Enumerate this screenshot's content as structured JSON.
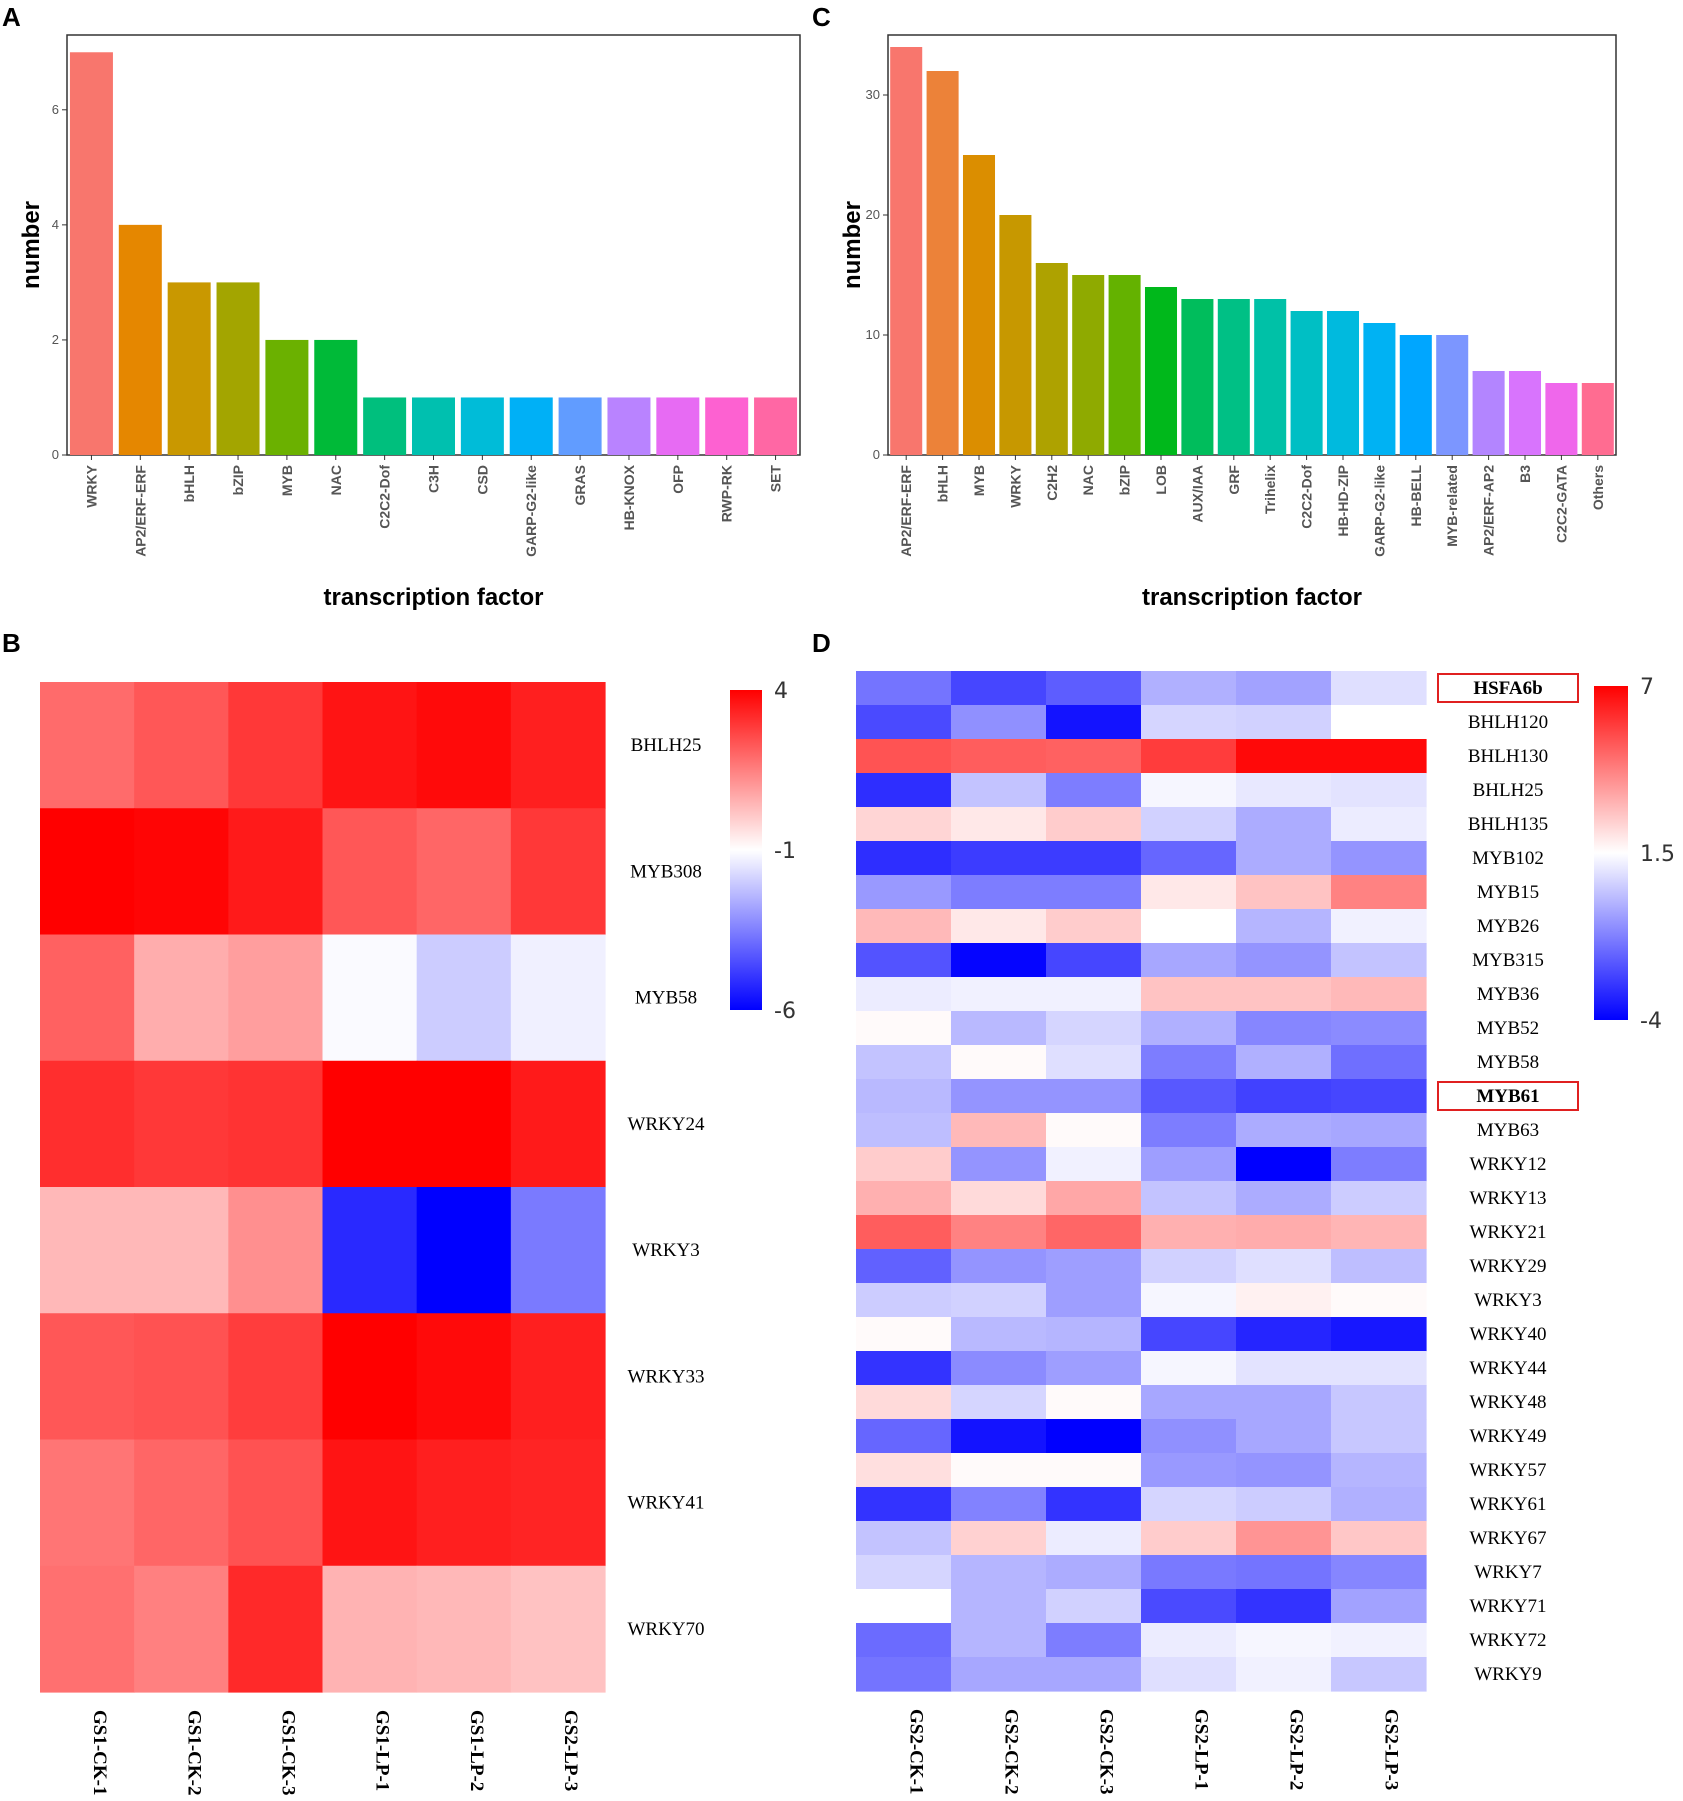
{
  "chart_data": [
    {
      "panel": "A",
      "type": "bar",
      "title": "",
      "xlabel": "transcription factor",
      "ylabel": "number",
      "ylim": [
        0,
        7.3
      ],
      "yticks": [
        0,
        2,
        4,
        6
      ],
      "categories": [
        "WRKY",
        "AP2/ERF-ERF",
        "bHLH",
        "bZIP",
        "MYB",
        "NAC",
        "C2C2-Dof",
        "C3H",
        "CSD",
        "GARP-G2-like",
        "GRAS",
        "HB-KNOX",
        "OFP",
        "RWP-RK",
        "SET"
      ],
      "values": [
        7,
        4,
        3,
        3,
        2,
        2,
        1,
        1,
        1,
        1,
        1,
        1,
        1,
        1,
        1
      ],
      "colors": [
        "#F8766D",
        "#E58700",
        "#C99800",
        "#A3A500",
        "#6BB100",
        "#00BA38",
        "#00BF7D",
        "#00C0AF",
        "#00BCD8",
        "#00B0F6",
        "#619CFF",
        "#B983FF",
        "#E76BF3",
        "#FD61D1",
        "#FF67A4"
      ],
      "grid": false
    },
    {
      "panel": "C",
      "type": "bar",
      "title": "",
      "xlabel": "transcription factor",
      "ylabel": "number",
      "ylim": [
        0,
        35
      ],
      "yticks": [
        0,
        10,
        20,
        30
      ],
      "categories": [
        "AP2/ERF-ERF",
        "bHLH",
        "MYB",
        "WRKY",
        "C2H2",
        "NAC",
        "bZIP",
        "LOB",
        "AUX/IAA",
        "GRF",
        "Trihelix",
        "C2C2-Dof",
        "HB-HD-ZIP",
        "GARP-G2-like",
        "HB-BELL",
        "MYB-related",
        "AP2/ERF-AP2",
        "B3",
        "C2C2-GATA",
        "Others"
      ],
      "values": [
        34,
        32,
        25,
        20,
        16,
        15,
        15,
        14,
        13,
        13,
        13,
        12,
        12,
        11,
        10,
        10,
        7,
        7,
        6,
        6
      ],
      "colors": [
        "#F8766D",
        "#EC8239",
        "#DB8E00",
        "#C79800",
        "#AEA200",
        "#8FAA00",
        "#64B200",
        "#00B81B",
        "#00BD5C",
        "#00C085",
        "#00C1A7",
        "#00BFC4",
        "#00BADE",
        "#00B2F3",
        "#00A6FF",
        "#7C96FF",
        "#B385FF",
        "#D874FD",
        "#EF67EB",
        "#FF6C91"
      ],
      "grid": false
    },
    {
      "panel": "B",
      "type": "heatmap",
      "title": "",
      "rows": [
        "BHLH25",
        "MYB308",
        "MYB58",
        "WRKY24",
        "WRKY3",
        "WRKY33",
        "WRKY41",
        "WRKY70"
      ],
      "columns": [
        "GS1-CK-1",
        "GS1-CK-2",
        "GS1-CK-3",
        "GS1-LP-1",
        "GS1-LP-2",
        "GS2-LP-3"
      ],
      "values": [
        [
          1.9,
          2.3,
          2.9,
          3.6,
          3.8,
          3.4
        ],
        [
          4.0,
          3.9,
          3.5,
          2.3,
          2.0,
          2.9
        ],
        [
          2.1,
          0.6,
          0.9,
          -1.1,
          -2.0,
          -1.3
        ],
        [
          3.1,
          2.9,
          3.0,
          4.6,
          4.7,
          3.5
        ],
        [
          0.4,
          0.4,
          1.2,
          -5.2,
          -6.0,
          -3.6
        ],
        [
          2.3,
          2.4,
          2.8,
          4.3,
          3.8,
          3.4
        ],
        [
          1.7,
          2.0,
          2.4,
          3.6,
          3.4,
          3.3
        ],
        [
          1.8,
          1.5,
          3.2,
          0.5,
          0.4,
          0.2
        ]
      ],
      "color_scale": {
        "min": -6,
        "mid": -1,
        "max": 4,
        "low": "#0000FF",
        "midc": "#FFFFFF",
        "high": "#FF0000"
      },
      "legend_ticks": [
        4,
        -1,
        -6
      ],
      "highlighted_rows": []
    },
    {
      "panel": "D",
      "type": "heatmap",
      "title": "",
      "rows": [
        "HSFA6b",
        "BHLH120",
        "BHLH130",
        "BHLH25",
        "BHLH135",
        "MYB102",
        "MYB15",
        "MYB26",
        "MYB315",
        "MYB36",
        "MYB52",
        "MYB58",
        "MYB61",
        "MYB63",
        "WRKY12",
        "WRKY13",
        "WRKY21",
        "WRKY29",
        "WRKY3",
        "WRKY40",
        "WRKY44",
        "WRKY48",
        "WRKY49",
        "WRKY57",
        "WRKY61",
        "WRKY67",
        "WRKY7",
        "WRKY71",
        "WRKY72",
        "WRKY9"
      ],
      "columns": [
        "GS2-CK-1",
        "GS2-CK-2",
        "GS2-CK-3",
        "GS2-LP-1",
        "GS2-LP-2",
        "GS2-LP-3"
      ],
      "values": [
        [
          -1.5,
          -2.5,
          -2.0,
          -0.2,
          -0.5,
          0.8
        ],
        [
          -2.4,
          -0.9,
          -3.6,
          0.6,
          0.5,
          1.5
        ],
        [
          5.2,
          5.0,
          4.9,
          5.7,
          6.8,
          6.8
        ],
        [
          -3.0,
          0.2,
          -1.3,
          1.3,
          1.0,
          0.9
        ],
        [
          2.4,
          2.0,
          2.6,
          0.5,
          -0.3,
          1.1
        ],
        [
          -3.0,
          -2.7,
          -2.7,
          -1.8,
          -0.3,
          -0.8
        ],
        [
          -0.7,
          -1.3,
          -1.3,
          2.0,
          2.8,
          4.2
        ],
        [
          3.0,
          2.0,
          2.6,
          1.5,
          -0.1,
          1.2
        ],
        [
          -2.2,
          -3.9,
          -2.5,
          -0.4,
          -0.8,
          0.2
        ],
        [
          1.1,
          1.2,
          1.2,
          2.8,
          2.8,
          3.0
        ],
        [
          1.6,
          0.0,
          0.6,
          -0.2,
          -1.1,
          -1.0
        ],
        [
          0.2,
          1.6,
          0.8,
          -1.3,
          -0.2,
          -1.6
        ],
        [
          0.0,
          -0.8,
          -0.8,
          -2.1,
          -2.6,
          -2.5
        ],
        [
          0.1,
          3.0,
          1.6,
          -1.3,
          -0.3,
          -0.4
        ],
        [
          2.6,
          -0.8,
          1.2,
          -0.6,
          -4.0,
          -1.3
        ],
        [
          3.2,
          2.3,
          3.4,
          0.2,
          -0.3,
          0.4
        ],
        [
          5.0,
          4.2,
          4.8,
          3.2,
          3.3,
          3.1
        ],
        [
          -1.9,
          -0.8,
          -0.6,
          0.5,
          0.8,
          0.1
        ],
        [
          0.4,
          0.5,
          -0.6,
          1.3,
          1.8,
          1.6
        ],
        [
          1.6,
          0.0,
          -0.1,
          -2.5,
          -3.2,
          -3.5
        ],
        [
          -2.9,
          -1.0,
          -0.6,
          1.3,
          0.9,
          0.9
        ],
        [
          2.3,
          0.6,
          1.6,
          -0.4,
          -0.4,
          0.3
        ],
        [
          -1.8,
          -3.6,
          -4.0,
          -0.9,
          -0.4,
          0.3
        ],
        [
          2.2,
          1.6,
          1.6,
          -0.7,
          -0.8,
          -0.1
        ],
        [
          -2.9,
          -1.2,
          -2.9,
          0.6,
          0.4,
          -0.2
        ],
        [
          0.2,
          2.5,
          1.1,
          2.6,
          3.8,
          2.7
        ],
        [
          0.6,
          -0.1,
          -0.3,
          -1.4,
          -1.5,
          -1.1
        ],
        [
          1.5,
          -0.1,
          0.5,
          -2.4,
          -2.9,
          -0.5
        ],
        [
          -1.7,
          -0.1,
          -1.3,
          1.1,
          1.3,
          1.2
        ],
        [
          -1.5,
          -0.4,
          -0.4,
          0.8,
          1.2,
          0.3
        ]
      ],
      "color_scale": {
        "min": -4,
        "mid": 1.5,
        "max": 7,
        "low": "#0000FF",
        "midc": "#FFFFFF",
        "high": "#FF0000"
      },
      "legend_ticks": [
        7,
        1.5,
        -4
      ],
      "highlighted_rows": [
        "HSFA6b",
        "MYB61"
      ]
    }
  ],
  "panels": {
    "a": "A",
    "b": "B",
    "c": "C",
    "d": "D"
  }
}
